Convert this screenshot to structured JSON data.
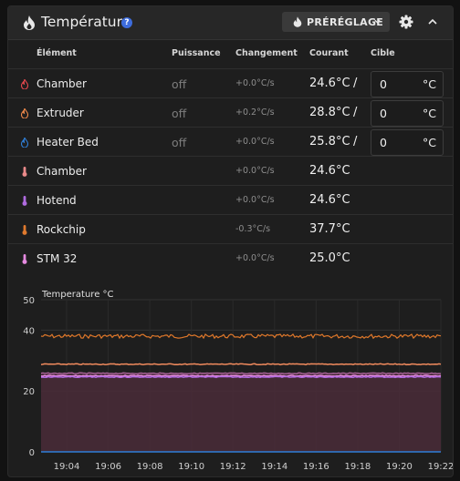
{
  "header": {
    "title": "Température",
    "help": "?",
    "preset_label": "PRÉRÉGLAGE"
  },
  "columns": {
    "element": "Élément",
    "power": "Puissance",
    "change": "Changement",
    "current": "Courant",
    "target": "Cible"
  },
  "rows": [
    {
      "name": "Chamber",
      "icon": "flame-icon",
      "color": "#e5484d",
      "power": "off",
      "change": "+0.0°C/s",
      "current": "24.6°C",
      "sep": "/",
      "target": "0",
      "unit": "°C"
    },
    {
      "name": "Extruder",
      "icon": "flame-icon",
      "color": "#f08a4b",
      "power": "off",
      "change": "+0.2°C/s",
      "current": "28.8°C",
      "sep": "/",
      "target": "0",
      "unit": "°C"
    },
    {
      "name": "Heater Bed",
      "icon": "flame-icon",
      "color": "#2f7fd8",
      "power": "off",
      "change": "+0.0°C/s",
      "current": "25.8°C",
      "sep": "/",
      "target": "0",
      "unit": "°C"
    },
    {
      "name": "Chamber",
      "icon": "thermometer-icon",
      "color": "#ea8a8a",
      "change": "+0.0°C/s",
      "current": "24.6°C"
    },
    {
      "name": "Hotend",
      "icon": "thermometer-icon",
      "color": "#b06be0",
      "change": "+0.0°C/s",
      "current": "24.6°C"
    },
    {
      "name": "Rockchip",
      "icon": "thermometer-icon",
      "color": "#e07a2e",
      "change": "-0.3°C/s",
      "current": "37.7°C"
    },
    {
      "name": "STM 32",
      "icon": "thermometer-icon",
      "color": "#e58ae0",
      "change": "+0.0°C/s",
      "current": "25.0°C"
    }
  ],
  "chart_data": {
    "type": "line",
    "title": "Temperature °C",
    "x_ticks": [
      "19:04",
      "19:06",
      "19:08",
      "19:10",
      "19:12",
      "19:14",
      "19:16",
      "19:18",
      "19:20",
      "19:22"
    ],
    "y_ticks": [
      "0",
      "20",
      "40",
      "50"
    ],
    "ylim": [
      0,
      50
    ],
    "grid": true,
    "series": [
      {
        "value": 38.0,
        "color": "#e0782a"
      },
      {
        "value": 28.8,
        "color": "#f08a5d"
      },
      {
        "value": 25.8,
        "color": "#a35f93",
        "area": true
      },
      {
        "value": 25.0,
        "color": "#e58ae0"
      },
      {
        "value": 24.6,
        "color": "#b06be0"
      },
      {
        "value": 0.0,
        "color": "#2f7fd8"
      }
    ]
  }
}
